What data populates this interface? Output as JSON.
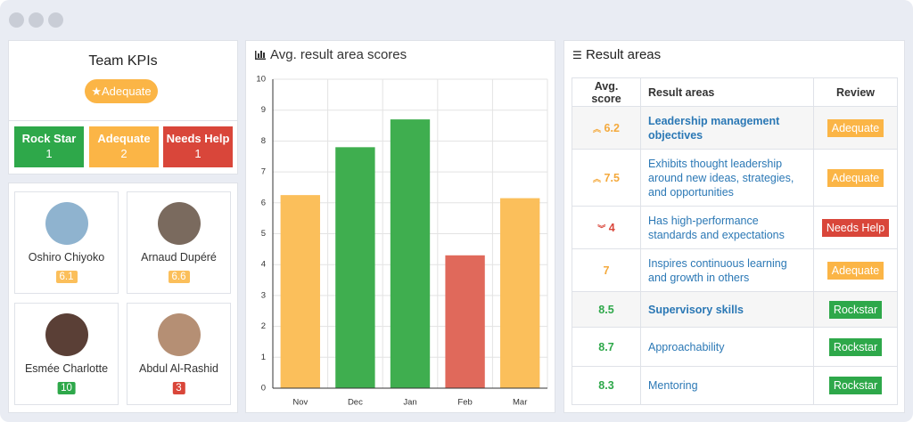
{
  "team_kpis": {
    "title": "Team KPIs",
    "badge": "Adequate",
    "counts": [
      {
        "label": "Rock Star",
        "value": 1
      },
      {
        "label": "Adequate",
        "value": 2
      },
      {
        "label": "Needs Help",
        "value": 1
      }
    ]
  },
  "people": [
    {
      "name": "Oshiro Chiyoko",
      "score": "6.1"
    },
    {
      "name": "Arnaud Dupéré",
      "score": "6.6"
    },
    {
      "name": "Esmée Charlotte",
      "score": "10"
    },
    {
      "name": "Abdul Al-Rashid",
      "score": "3"
    }
  ],
  "chart_data": {
    "type": "bar",
    "title": "Avg. result area scores",
    "categories": [
      "Nov",
      "Dec",
      "Jan",
      "Feb",
      "Mar"
    ],
    "values": [
      6.25,
      7.8,
      8.7,
      4.3,
      6.15
    ],
    "colors": [
      "#fbbf5b",
      "#3fae4f",
      "#3fae4f",
      "#e0695b",
      "#fbbf5b"
    ],
    "ylim": [
      0,
      10
    ],
    "yticks": [
      0,
      1,
      2,
      3,
      4,
      5,
      6,
      7,
      8,
      9,
      10
    ],
    "grid": true
  },
  "result_areas": {
    "title": "Result areas",
    "headers": [
      "Avg. score",
      "Result areas",
      "Review"
    ],
    "rows": [
      {
        "score": "6.2",
        "area": "Leadership management objectives",
        "review": "Adequate"
      },
      {
        "score": "7.5",
        "area": "Exhibits thought leadership around new ideas, strategies, and opportunities",
        "review": "Adequate"
      },
      {
        "score": "4",
        "area": "Has high-performance standards and expectations",
        "review": "Needs Help"
      },
      {
        "score": "7",
        "area": "Inspires continuous learning and growth in others",
        "review": "Adequate"
      },
      {
        "score": "8.5",
        "area": "Supervisory skills",
        "review": "Rockstar"
      },
      {
        "score": "8.7",
        "area": "Approachability",
        "review": "Rockstar"
      },
      {
        "score": "8.3",
        "area": "Mentoring",
        "review": "Rockstar"
      }
    ]
  }
}
